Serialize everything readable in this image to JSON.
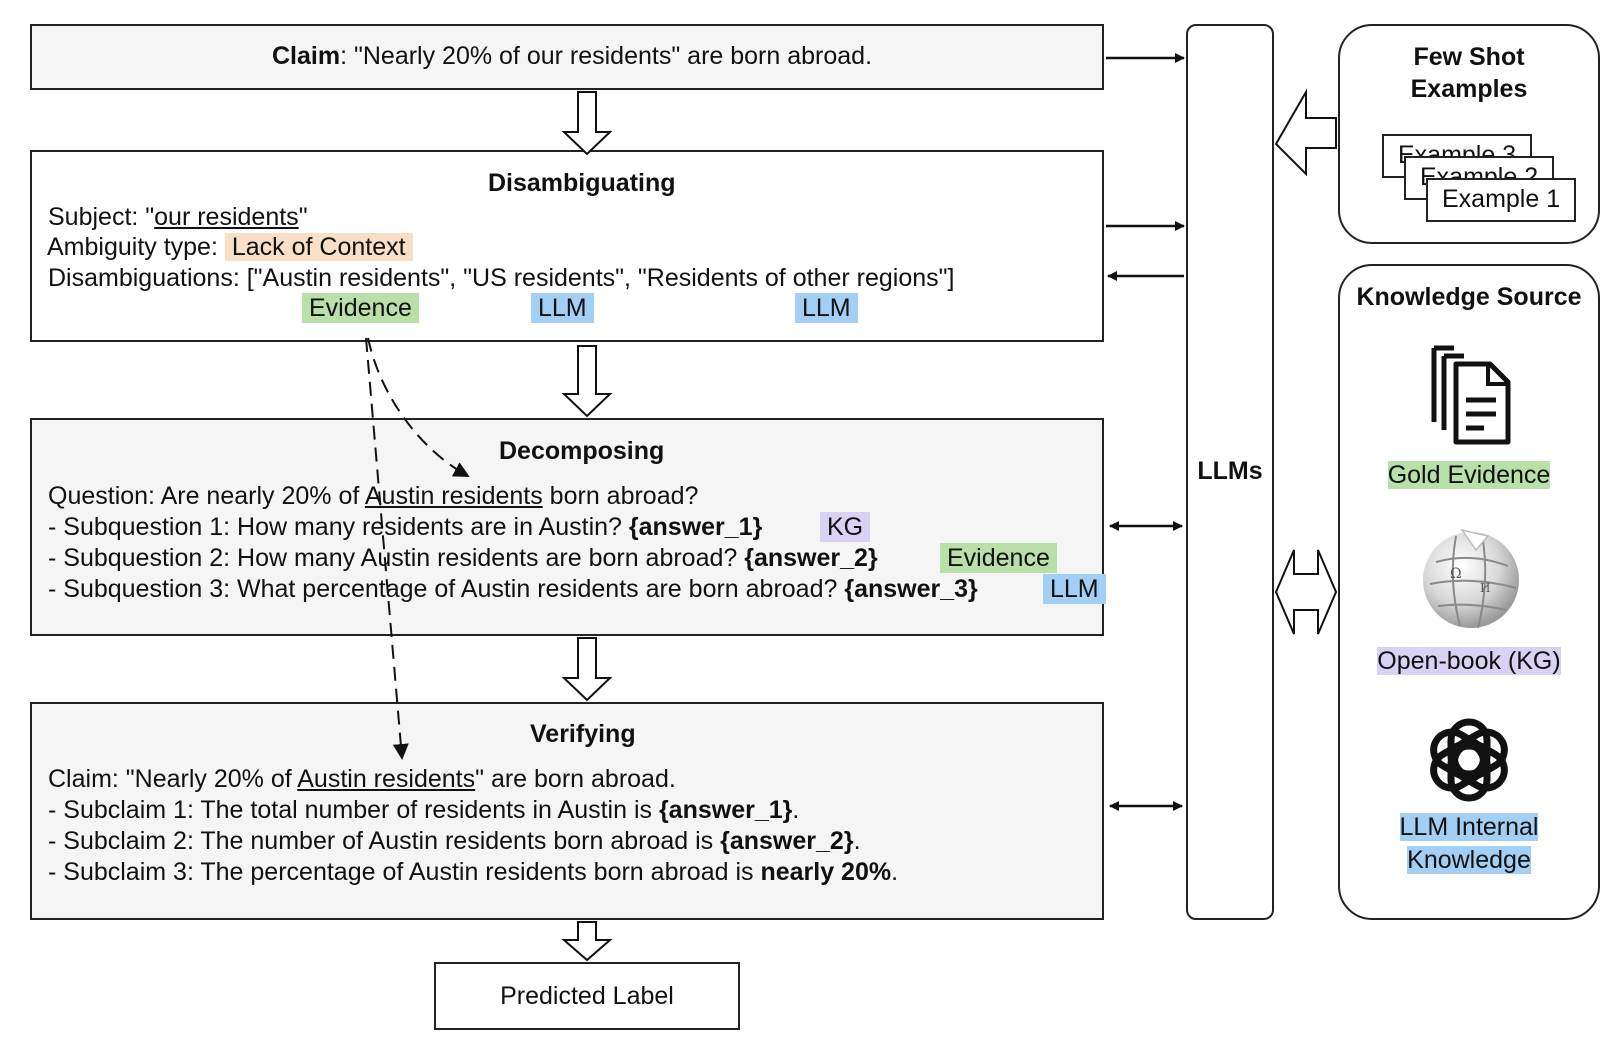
{
  "claim": {
    "label": "Claim",
    "text": ": \"Nearly 20% of our residents\" are born abroad."
  },
  "disambiguating": {
    "title": "Disambiguating",
    "subject_prefix": "Subject: \"",
    "subject_value": "our residents",
    "subject_suffix": "\"",
    "ambiguity_label": "Ambiguity type:",
    "ambiguity_value": "Lack of Context",
    "disambiguations_text": "Disambiguations: [\"Austin residents\", \"US residents\", \"Residents of other regions\"]",
    "tags": [
      "Evidence",
      "LLM",
      "LLM"
    ]
  },
  "decomposing": {
    "title": "Decomposing",
    "question_prefix": "Question: Are nearly 20% of ",
    "question_entity": "Austin residents",
    "question_suffix": " born abroad?",
    "subquestions": [
      {
        "text": "- Subquestion 1: How many residents are in Austin? ",
        "answer": "{answer_1}",
        "tag": "KG"
      },
      {
        "text": "- Subquestion 2: How many Austin residents are born abroad? ",
        "answer": "{answer_2}",
        "tag": "Evidence"
      },
      {
        "text": "- Subquestion 3: What percentage of Austin residents are born abroad? ",
        "answer": "{answer_3}",
        "tag": "LLM"
      }
    ]
  },
  "verifying": {
    "title": "Verifying",
    "claim_prefix": "Claim: \"Nearly 20% of ",
    "claim_entity": "Austin residents",
    "claim_suffix": "\" are born abroad.",
    "subclaims": [
      {
        "text": "- Subclaim 1: The total number of residents in Austin is ",
        "bold": "{answer_1}",
        "end": "."
      },
      {
        "text": "- Subclaim 2: The number of Austin residents born abroad is ",
        "bold": "{answer_2}",
        "end": "."
      },
      {
        "text": "- Subclaim 3: The percentage of Austin residents born abroad is ",
        "bold": "nearly 20%",
        "end": "."
      }
    ]
  },
  "predicted_label": "Predicted Label",
  "llms_label": "LLMs",
  "few_shot": {
    "title_line1": "Few Shot",
    "title_line2": "Examples",
    "examples": [
      "Example 3",
      "Example 2",
      "Example 1"
    ]
  },
  "knowledge_source": {
    "title": "Knowledge Source",
    "gold_evidence": "Gold Evidence",
    "open_book": "Open-book (KG)",
    "llm_internal_line1": "LLM Internal",
    "llm_internal_line2": "Knowledge"
  },
  "colors": {
    "orange_highlight": "#f9dfc7",
    "green_highlight": "#b9e0a8",
    "blue_highlight": "#a3cff5",
    "purple_highlight": "#d9d2f4",
    "box_gray": "#f5f5f5"
  }
}
